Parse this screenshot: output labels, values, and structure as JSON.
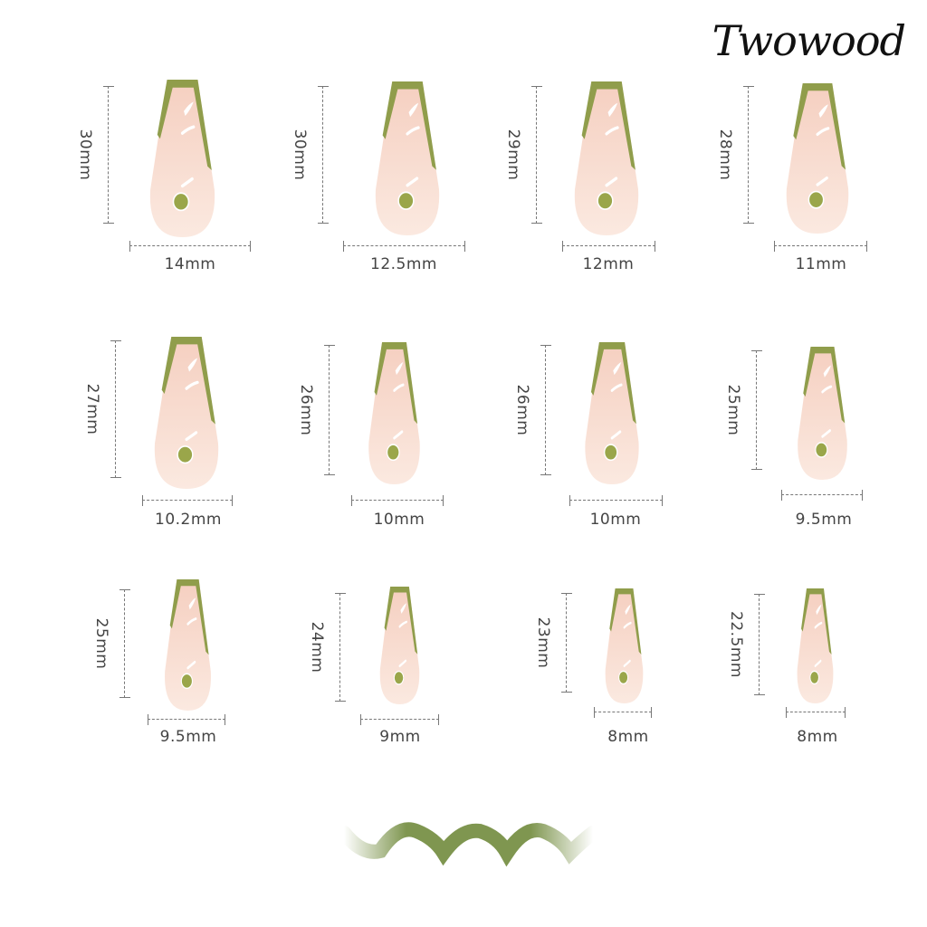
{
  "brand": {
    "logo_text": "Twowood"
  },
  "colors": {
    "nail_pink": "#f7d9cd",
    "tip_green": "#8a9a45",
    "dot_green": "#9aa64a",
    "wave_green": "#7f9650"
  },
  "nails": [
    {
      "length": "30mm",
      "width": "14mm"
    },
    {
      "length": "30mm",
      "width": "12.5mm"
    },
    {
      "length": "29mm",
      "width": "12mm"
    },
    {
      "length": "28mm",
      "width": "11mm"
    },
    {
      "length": "27mm",
      "width": "10.2mm"
    },
    {
      "length": "26mm",
      "width": "10mm"
    },
    {
      "length": "26mm",
      "width": "10mm"
    },
    {
      "length": "25mm",
      "width": "9.5mm"
    },
    {
      "length": "25mm",
      "width": "9.5mm"
    },
    {
      "length": "24mm",
      "width": "9mm"
    },
    {
      "length": "23mm",
      "width": "8mm"
    },
    {
      "length": "22.5mm",
      "width": "8mm"
    }
  ],
  "decoration": {
    "wave_icon": "wavy-line"
  }
}
